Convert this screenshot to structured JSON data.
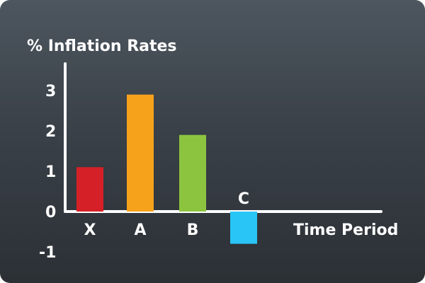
{
  "chart_data": {
    "type": "bar",
    "title": "",
    "ylabel": "% Inflation Rates",
    "xlabel": "Time Period",
    "ylim": [
      -1,
      3.5
    ],
    "yticks": [
      "3",
      "2",
      "1",
      "0",
      "-1"
    ],
    "ytick_values": [
      3,
      2,
      1,
      0,
      -1
    ],
    "categories": [
      "X",
      "A",
      "B",
      "C"
    ],
    "values": [
      1.1,
      2.9,
      1.9,
      -0.8
    ],
    "colors": [
      "#d62027",
      "#f7a21b",
      "#8dc43f",
      "#29c5f6"
    ],
    "grid": false,
    "legend": "none"
  }
}
